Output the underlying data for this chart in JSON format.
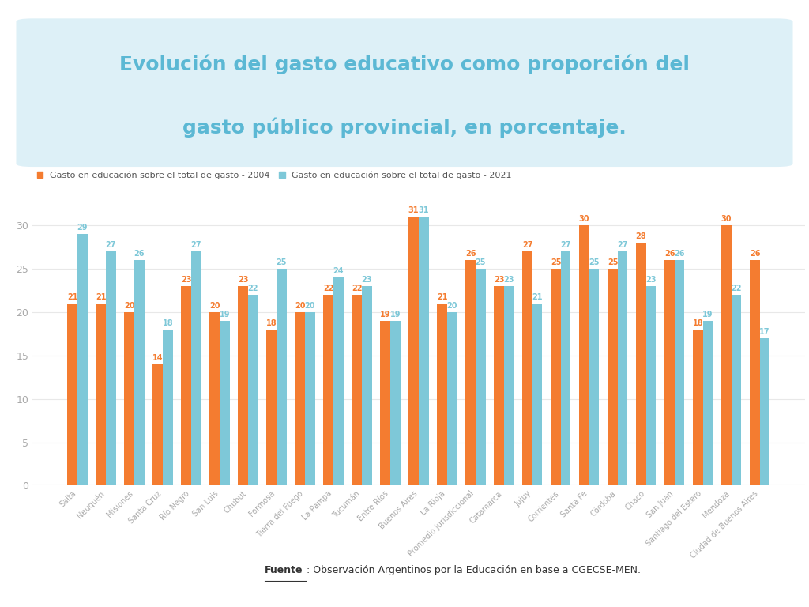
{
  "title_line1": "Evolución del gasto educativo como proporción del",
  "title_line2": "gasto público provincial, en porcentaje.",
  "title_color": "#5bb8d4",
  "title_bg_color": "#ddf0f7",
  "legend_label_2004": "Gasto en educación sobre el total de gasto - 2004",
  "legend_label_2021": "Gasto en educación sobre el total de gasto - 2021",
  "color_2004": "#f47c30",
  "color_2021": "#7ec8d8",
  "source_prefix": "Fuente",
  "source_suffix": ": Observación Argentinos por la Educación en base a CGECSE-MEN.",
  "categories": [
    "Salta",
    "Neuquén",
    "Misiones",
    "Santa Cruz",
    "Río Negro",
    "San Luis",
    "Chubut",
    "Formosa",
    "Tierra del Fuego",
    "La Pampa",
    "Tucumán",
    "Entre Ríos",
    "Buenos Aires",
    "La Rioja",
    "Promedio jurisdiccional",
    "Catamarca",
    "Jujuy",
    "Corrientes",
    "Santa Fe",
    "Córdoba",
    "Chaco",
    "San Juan",
    "Santiago del Estero",
    "Mendoza",
    "Ciudad de Buenos Aires"
  ],
  "values_2004": [
    21,
    21,
    20,
    14,
    23,
    20,
    23,
    18,
    20,
    22,
    22,
    19,
    31,
    21,
    26,
    23,
    27,
    25,
    30,
    25,
    28,
    26,
    18,
    30,
    26
  ],
  "values_2021": [
    29,
    27,
    26,
    18,
    27,
    19,
    22,
    25,
    20,
    24,
    23,
    19,
    31,
    20,
    25,
    23,
    21,
    27,
    25,
    27,
    23,
    26,
    19,
    22,
    17
  ],
  "ylim": [
    0,
    35
  ],
  "yticks": [
    0,
    5,
    10,
    15,
    20,
    25,
    30
  ],
  "background_color": "#ffffff",
  "grid_color": "#e8e8e8",
  "bar_width": 0.35,
  "label_fontsize": 7,
  "tick_fontsize": 7,
  "legend_fontsize": 8,
  "title_fontsize": 18
}
